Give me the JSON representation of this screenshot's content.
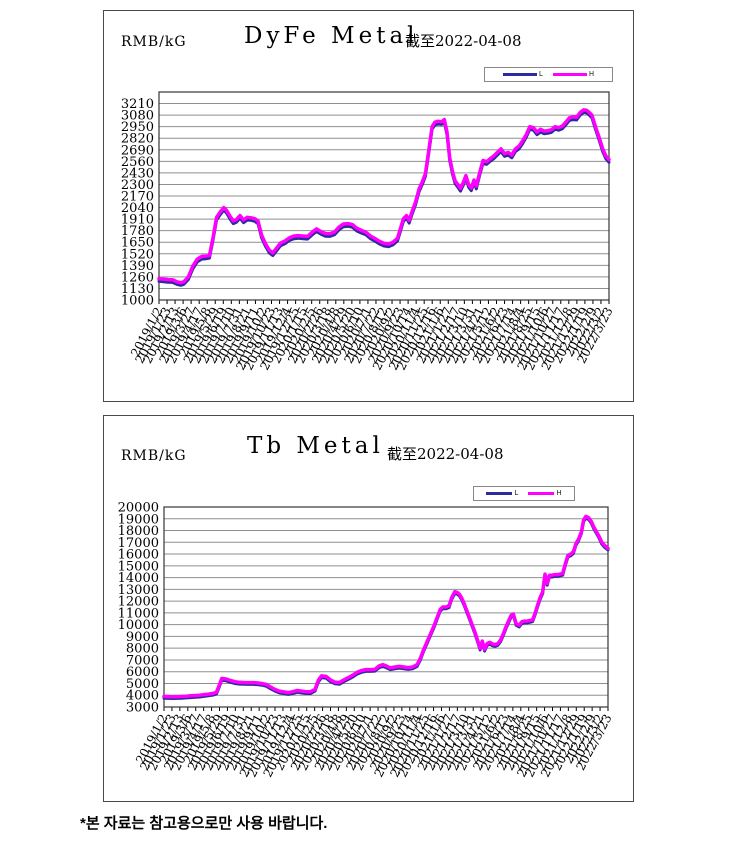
{
  "page": {
    "footer_note": "*본 자료는 참고용으로만 사용 바랍니다."
  },
  "colors": {
    "h_line": "#FF00FF",
    "l_line": "#2B2B9E",
    "grid": "#8F8F8F",
    "plot_border": "#353535",
    "tick": "#000000"
  },
  "chart_data": [
    {
      "type": "line",
      "title": "DyFe Metal",
      "unit_label": "RMB/kG",
      "asof_label": "截至2022-04-08",
      "legend_position": "top-right",
      "grid": "horizontal",
      "ylim": [
        1000,
        3340
      ],
      "yticks": [
        3210,
        3080,
        2950,
        2820,
        2690,
        2560,
        2430,
        2300,
        2170,
        2040,
        1910,
        1780,
        1650,
        1520,
        1390,
        1260,
        1130,
        1000
      ],
      "x_labels": [
        "2019/1/2",
        "2019/1/23",
        "2019/2/13",
        "2019/3/6",
        "2019/3/27",
        "2019/4/17",
        "2019/5/8",
        "2019/5/29",
        "2019/6/19",
        "2019/7/10",
        "2019/7/31",
        "2019/8/21",
        "2019/9/11",
        "2019/10/2",
        "2019/10/23",
        "2019/11/13",
        "2019/12/4",
        "2019/12/25",
        "2020/1/15",
        "2020/2/5",
        "2020/2/26",
        "2020/3/18",
        "2020/4/8",
        "2020/4/29",
        "2020/5/20",
        "2020/6/10",
        "2020/7/1",
        "2020/7/22",
        "2020/8/12",
        "2020/9/2",
        "2020/9/23",
        "2020/10/14",
        "2020/11/4",
        "2020/11/25",
        "2020/12/16",
        "2021/1/6",
        "2021/1/27",
        "2021/2/17",
        "2021/3/10",
        "2021/3/31",
        "2021/4/21",
        "2021/5/12",
        "2021/6/2",
        "2021/6/23",
        "2021/7/14",
        "2021/8/4",
        "2021/8/25",
        "2021/9/15",
        "2021/10/6",
        "2021/10/27",
        "2021/11/17",
        "2021/12/8",
        "2021/12/29",
        "2022/1/19",
        "2022/2/9",
        "2022/3/2",
        "2022/3/23"
      ],
      "series": [
        {
          "name": "L",
          "color": "#2B2B9E",
          "value_delta_vs_h": -30,
          "stroke_width": 3
        },
        {
          "name": "H",
          "color": "#FF00FF",
          "value_delta_vs_h": 0,
          "stroke_width": 3.5
        }
      ],
      "h_points": [
        [
          0.0,
          1240
        ],
        [
          0.01,
          1235
        ],
        [
          0.02,
          1230
        ],
        [
          0.03,
          1228
        ],
        [
          0.04,
          1205
        ],
        [
          0.048,
          1195
        ],
        [
          0.055,
          1205
        ],
        [
          0.065,
          1260
        ],
        [
          0.075,
          1380
        ],
        [
          0.085,
          1460
        ],
        [
          0.095,
          1490
        ],
        [
          0.105,
          1495
        ],
        [
          0.112,
          1500
        ],
        [
          0.12,
          1700
        ],
        [
          0.128,
          1930
        ],
        [
          0.136,
          1990
        ],
        [
          0.144,
          2040
        ],
        [
          0.15,
          2010
        ],
        [
          0.158,
          1940
        ],
        [
          0.165,
          1890
        ],
        [
          0.172,
          1905
        ],
        [
          0.18,
          1950
        ],
        [
          0.188,
          1900
        ],
        [
          0.196,
          1930
        ],
        [
          0.205,
          1925
        ],
        [
          0.213,
          1915
        ],
        [
          0.22,
          1890
        ],
        [
          0.228,
          1730
        ],
        [
          0.236,
          1640
        ],
        [
          0.245,
          1560
        ],
        [
          0.253,
          1530
        ],
        [
          0.261,
          1580
        ],
        [
          0.27,
          1640
        ],
        [
          0.28,
          1665
        ],
        [
          0.29,
          1700
        ],
        [
          0.3,
          1720
        ],
        [
          0.31,
          1725
        ],
        [
          0.32,
          1720
        ],
        [
          0.33,
          1715
        ],
        [
          0.34,
          1760
        ],
        [
          0.35,
          1800
        ],
        [
          0.36,
          1770
        ],
        [
          0.37,
          1748
        ],
        [
          0.38,
          1745
        ],
        [
          0.39,
          1765
        ],
        [
          0.4,
          1820
        ],
        [
          0.41,
          1855
        ],
        [
          0.42,
          1860
        ],
        [
          0.43,
          1848
        ],
        [
          0.44,
          1805
        ],
        [
          0.45,
          1783
        ],
        [
          0.46,
          1762
        ],
        [
          0.47,
          1720
        ],
        [
          0.48,
          1692
        ],
        [
          0.49,
          1660
        ],
        [
          0.5,
          1638
        ],
        [
          0.51,
          1630
        ],
        [
          0.52,
          1650
        ],
        [
          0.53,
          1695
        ],
        [
          0.537,
          1810
        ],
        [
          0.543,
          1915
        ],
        [
          0.55,
          1950
        ],
        [
          0.556,
          1895
        ],
        [
          0.562,
          1990
        ],
        [
          0.57,
          2100
        ],
        [
          0.578,
          2250
        ],
        [
          0.585,
          2330
        ],
        [
          0.592,
          2420
        ],
        [
          0.6,
          2700
        ],
        [
          0.607,
          2950
        ],
        [
          0.613,
          3000
        ],
        [
          0.62,
          3010
        ],
        [
          0.628,
          3005
        ],
        [
          0.634,
          3030
        ],
        [
          0.64,
          2890
        ],
        [
          0.646,
          2600
        ],
        [
          0.652,
          2450
        ],
        [
          0.658,
          2340
        ],
        [
          0.664,
          2300
        ],
        [
          0.67,
          2255
        ],
        [
          0.676,
          2320
        ],
        [
          0.682,
          2400
        ],
        [
          0.688,
          2300
        ],
        [
          0.694,
          2260
        ],
        [
          0.7,
          2350
        ],
        [
          0.705,
          2280
        ],
        [
          0.712,
          2420
        ],
        [
          0.72,
          2570
        ],
        [
          0.728,
          2555
        ],
        [
          0.736,
          2590
        ],
        [
          0.744,
          2620
        ],
        [
          0.752,
          2660
        ],
        [
          0.76,
          2700
        ],
        [
          0.768,
          2645
        ],
        [
          0.776,
          2660
        ],
        [
          0.784,
          2630
        ],
        [
          0.792,
          2700
        ],
        [
          0.8,
          2730
        ],
        [
          0.808,
          2790
        ],
        [
          0.816,
          2860
        ],
        [
          0.824,
          2950
        ],
        [
          0.832,
          2940
        ],
        [
          0.84,
          2890
        ],
        [
          0.848,
          2920
        ],
        [
          0.856,
          2900
        ],
        [
          0.864,
          2905
        ],
        [
          0.872,
          2915
        ],
        [
          0.88,
          2950
        ],
        [
          0.888,
          2940
        ],
        [
          0.896,
          2955
        ],
        [
          0.904,
          3000
        ],
        [
          0.912,
          3050
        ],
        [
          0.92,
          3060
        ],
        [
          0.928,
          3055
        ],
        [
          0.936,
          3110
        ],
        [
          0.944,
          3140
        ],
        [
          0.95,
          3135
        ],
        [
          0.956,
          3110
        ],
        [
          0.962,
          3080
        ],
        [
          0.97,
          2950
        ],
        [
          0.978,
          2830
        ],
        [
          0.986,
          2700
        ],
        [
          0.993,
          2620
        ],
        [
          1.0,
          2580
        ]
      ],
      "layout": {
        "plot": [
          55,
          81,
          450,
          208
        ],
        "svg_size": [
          529,
          388
        ],
        "x_label_font": 12,
        "x_label_angle": -62
      }
    },
    {
      "type": "line",
      "title": "Tb Metal",
      "unit_label": "RMB/kG",
      "asof_label": "截至2022-04-08",
      "legend_position": "top-right",
      "grid": "horizontal",
      "ylim": [
        3000,
        20000
      ],
      "yticks": [
        20000,
        19000,
        18000,
        17000,
        16000,
        15000,
        14000,
        13000,
        12000,
        11000,
        10000,
        9000,
        8000,
        7000,
        6000,
        5000,
        4000,
        3000
      ],
      "x_labels": [
        "2019/1/2",
        "2019/1/23",
        "2019/2/13",
        "2019/3/6",
        "2019/3/27",
        "2019/4/17",
        "2019/5/8",
        "2019/5/29",
        "2019/6/19",
        "2019/7/10",
        "2019/7/31",
        "2019/8/21",
        "2019/9/11",
        "2019/10/2",
        "2019/10/23",
        "2019/11/13",
        "2019/12/4",
        "2019/12/25",
        "2020/1/15",
        "2020/2/5",
        "2020/2/26",
        "2020/3/18",
        "2020/4/8",
        "2020/4/29",
        "2020/5/20",
        "2020/6/10",
        "2020/7/1",
        "2020/7/22",
        "2020/8/12",
        "2020/9/2",
        "2020/9/23",
        "2020/10/14",
        "2020/11/4",
        "2020/11/25",
        "2020/12/16",
        "2021/1/6",
        "2021/1/27",
        "2021/2/17",
        "2021/3/10",
        "2021/3/31",
        "2021/4/21",
        "2021/5/12",
        "2021/6/2",
        "2021/6/23",
        "2021/7/14",
        "2021/8/4",
        "2021/8/25",
        "2021/9/15",
        "2021/10/6",
        "2021/10/27",
        "2021/11/17",
        "2021/12/8",
        "2021/12/29",
        "2022/1/19",
        "2022/2/9",
        "2022/3/2",
        "2022/3/23"
      ],
      "series": [
        {
          "name": "L",
          "color": "#2B2B9E",
          "value_delta_vs_h": -150,
          "stroke_width": 3
        },
        {
          "name": "H",
          "color": "#FF00FF",
          "value_delta_vs_h": 0,
          "stroke_width": 3.5
        }
      ],
      "h_points": [
        [
          0.0,
          3900
        ],
        [
          0.01,
          3880
        ],
        [
          0.02,
          3870
        ],
        [
          0.03,
          3880
        ],
        [
          0.04,
          3900
        ],
        [
          0.05,
          3920
        ],
        [
          0.06,
          3950
        ],
        [
          0.07,
          3980
        ],
        [
          0.08,
          4000
        ],
        [
          0.09,
          4050
        ],
        [
          0.1,
          4100
        ],
        [
          0.11,
          4150
        ],
        [
          0.118,
          4250
        ],
        [
          0.125,
          4900
        ],
        [
          0.13,
          5420
        ],
        [
          0.14,
          5380
        ],
        [
          0.15,
          5250
        ],
        [
          0.16,
          5150
        ],
        [
          0.17,
          5100
        ],
        [
          0.18,
          5080
        ],
        [
          0.19,
          5070
        ],
        [
          0.2,
          5070
        ],
        [
          0.21,
          5050
        ],
        [
          0.22,
          5000
        ],
        [
          0.23,
          4930
        ],
        [
          0.24,
          4700
        ],
        [
          0.25,
          4500
        ],
        [
          0.26,
          4350
        ],
        [
          0.27,
          4280
        ],
        [
          0.28,
          4220
        ],
        [
          0.29,
          4300
        ],
        [
          0.3,
          4400
        ],
        [
          0.31,
          4350
        ],
        [
          0.32,
          4300
        ],
        [
          0.33,
          4300
        ],
        [
          0.34,
          4500
        ],
        [
          0.348,
          5300
        ],
        [
          0.355,
          5650
        ],
        [
          0.365,
          5600
        ],
        [
          0.375,
          5300
        ],
        [
          0.385,
          5120
        ],
        [
          0.395,
          5080
        ],
        [
          0.405,
          5300
        ],
        [
          0.415,
          5500
        ],
        [
          0.425,
          5700
        ],
        [
          0.435,
          5950
        ],
        [
          0.445,
          6100
        ],
        [
          0.455,
          6180
        ],
        [
          0.465,
          6180
        ],
        [
          0.475,
          6200
        ],
        [
          0.485,
          6500
        ],
        [
          0.493,
          6600
        ],
        [
          0.5,
          6500
        ],
        [
          0.51,
          6320
        ],
        [
          0.52,
          6400
        ],
        [
          0.53,
          6450
        ],
        [
          0.54,
          6400
        ],
        [
          0.55,
          6350
        ],
        [
          0.56,
          6400
        ],
        [
          0.57,
          6600
        ],
        [
          0.578,
          7200
        ],
        [
          0.585,
          7900
        ],
        [
          0.592,
          8500
        ],
        [
          0.6,
          9200
        ],
        [
          0.608,
          9900
        ],
        [
          0.615,
          10600
        ],
        [
          0.622,
          11300
        ],
        [
          0.628,
          11500
        ],
        [
          0.635,
          11500
        ],
        [
          0.642,
          11600
        ],
        [
          0.648,
          12300
        ],
        [
          0.655,
          12800
        ],
        [
          0.66,
          12750
        ],
        [
          0.665,
          12600
        ],
        [
          0.67,
          12300
        ],
        [
          0.676,
          11800
        ],
        [
          0.682,
          11200
        ],
        [
          0.688,
          10600
        ],
        [
          0.694,
          10000
        ],
        [
          0.7,
          9400
        ],
        [
          0.706,
          8700
        ],
        [
          0.712,
          8000
        ],
        [
          0.717,
          8600
        ],
        [
          0.722,
          7900
        ],
        [
          0.728,
          8400
        ],
        [
          0.734,
          8500
        ],
        [
          0.74,
          8350
        ],
        [
          0.746,
          8300
        ],
        [
          0.752,
          8400
        ],
        [
          0.758,
          8700
        ],
        [
          0.764,
          9200
        ],
        [
          0.77,
          9800
        ],
        [
          0.776,
          10300
        ],
        [
          0.782,
          10800
        ],
        [
          0.787,
          10900
        ],
        [
          0.793,
          10100
        ],
        [
          0.8,
          9950
        ],
        [
          0.806,
          10250
        ],
        [
          0.812,
          10300
        ],
        [
          0.818,
          10300
        ],
        [
          0.824,
          10350
        ],
        [
          0.83,
          10400
        ],
        [
          0.836,
          11000
        ],
        [
          0.841,
          11600
        ],
        [
          0.847,
          12300
        ],
        [
          0.853,
          12800
        ],
        [
          0.858,
          14300
        ],
        [
          0.863,
          13500
        ],
        [
          0.868,
          14200
        ],
        [
          0.874,
          14200
        ],
        [
          0.88,
          14250
        ],
        [
          0.886,
          14250
        ],
        [
          0.892,
          14300
        ],
        [
          0.898,
          14350
        ],
        [
          0.904,
          15200
        ],
        [
          0.91,
          15900
        ],
        [
          0.916,
          16000
        ],
        [
          0.922,
          16200
        ],
        [
          0.928,
          16900
        ],
        [
          0.934,
          17300
        ],
        [
          0.94,
          17900
        ],
        [
          0.945,
          18900
        ],
        [
          0.95,
          19200
        ],
        [
          0.956,
          19100
        ],
        [
          0.962,
          18800
        ],
        [
          0.968,
          18300
        ],
        [
          0.974,
          17900
        ],
        [
          0.98,
          17500
        ],
        [
          0.986,
          17000
        ],
        [
          0.993,
          16700
        ],
        [
          1.0,
          16500
        ]
      ],
      "layout": {
        "plot": [
          60,
          91,
          444,
          200
        ],
        "svg_size": [
          529,
          383
        ],
        "x_label_font": 12,
        "x_label_angle": -62
      }
    }
  ]
}
